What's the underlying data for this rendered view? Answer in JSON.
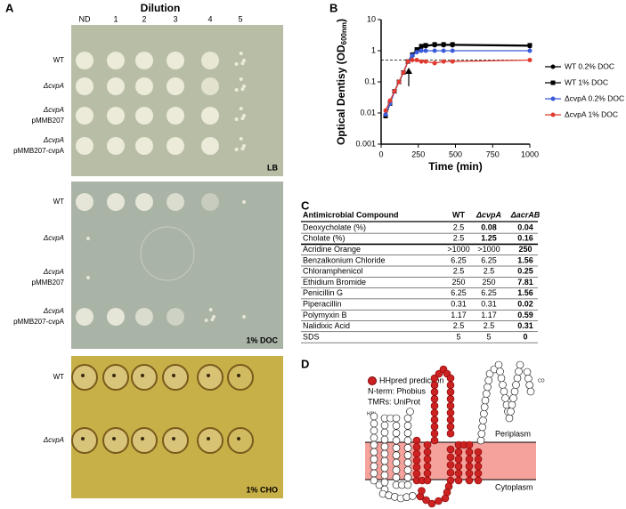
{
  "panel_labels": [
    "A",
    "B",
    "C",
    "D"
  ],
  "panel_a": {
    "title": "Dilution",
    "columns": [
      "ND",
      "1",
      "2",
      "3",
      "4",
      "5"
    ],
    "plates": [
      {
        "medium": "LB",
        "rows": [
          [
            "WT"
          ],
          [
            "ΔcvpA"
          ],
          [
            "ΔcvpA",
            "pMMB207"
          ],
          [
            "ΔcvpA",
            "pMMB207-cvpA"
          ]
        ]
      },
      {
        "medium": "1% DOC",
        "rows": [
          [
            "WT"
          ],
          [
            "ΔcvpA"
          ],
          [
            "ΔcvpA",
            "pMMB207"
          ],
          [
            "ΔcvpA",
            "pMMB207-cvpA"
          ]
        ]
      },
      {
        "medium": "1% CHO",
        "rows": [
          [
            "WT"
          ],
          [
            "ΔcvpA"
          ]
        ]
      }
    ]
  },
  "chart_data": {
    "type": "line",
    "ylabel": "Optical Dentisy (OD",
    "ylabel_sub": "600nm",
    "ylabel_end": ")",
    "xlabel": "Time (min)",
    "x": [
      30,
      60,
      90,
      120,
      150,
      180,
      210,
      240,
      270,
      300,
      360,
      420,
      480,
      1000
    ],
    "xlim": [
      0,
      1000
    ],
    "xticks": [
      0,
      250,
      500,
      750,
      1000
    ],
    "ylim": [
      0.001,
      10
    ],
    "yticks": [
      0.001,
      0.01,
      0.1,
      1,
      10
    ],
    "log_y": true,
    "reference_line": 0.5,
    "series": [
      {
        "name": "WT 0.2% DOC",
        "color": "#000000",
        "marker": "circle",
        "values": [
          0.008,
          0.02,
          0.05,
          0.1,
          0.2,
          0.45,
          0.7,
          1.0,
          1.3,
          1.4,
          1.5,
          1.5,
          1.5,
          1.4
        ]
      },
      {
        "name": "WT 1% DOC",
        "color": "#000000",
        "marker": "square",
        "values": [
          0.008,
          0.02,
          0.05,
          0.1,
          0.2,
          0.45,
          0.75,
          1.1,
          1.4,
          1.5,
          1.6,
          1.6,
          1.6,
          1.5
        ]
      },
      {
        "name": "ΔcvpA 0.2% DOC",
        "color": "#3b5bdb",
        "marker": "circle",
        "values": [
          0.009,
          0.02,
          0.05,
          0.1,
          0.2,
          0.45,
          0.7,
          0.9,
          1.0,
          1.0,
          1.0,
          1.0,
          1.0,
          1.0
        ]
      },
      {
        "name": "ΔcvpA 1% DOC",
        "color": "#e03a2f",
        "marker": "circle",
        "values": [
          0.012,
          0.025,
          0.05,
          0.1,
          0.2,
          0.45,
          0.5,
          0.5,
          0.45,
          0.45,
          0.4,
          0.45,
          0.45,
          0.5
        ]
      }
    ]
  },
  "table": {
    "header": [
      "Antimicrobial Compound",
      "WT",
      "ΔcvpA",
      "ΔacrAB"
    ],
    "rows": [
      [
        "Deoxycholate (%)",
        "2.5",
        "0.08",
        "0.04"
      ],
      [
        "Cholate (%)",
        "2.5",
        "1.25",
        "0.16"
      ],
      [
        "Acridine Orange",
        ">1000",
        ">1000",
        "250"
      ],
      [
        "Benzalkonium Chloride",
        "6.25",
        "6.25",
        "1.56"
      ],
      [
        "Chloramphenicol",
        "2.5",
        "2.5",
        "0.25"
      ],
      [
        "Ethidium Bromide",
        "250",
        "250",
        "7.81"
      ],
      [
        "Penicillin G",
        "6.25",
        "6.25",
        "1.56"
      ],
      [
        "Piperacillin",
        "0.31",
        "0.31",
        "0.02"
      ],
      [
        "Polymyxin B",
        "1.17",
        "1.17",
        "0.59"
      ],
      [
        "Nalidixic Acid",
        "2.5",
        "2.5",
        "0.31"
      ],
      [
        "SDS",
        "5",
        "5",
        "0"
      ]
    ]
  },
  "panel_d": {
    "legend": "HHpred prediction",
    "notes": [
      "N-term: Phobius",
      "TMRs: UniProt"
    ],
    "periplasm": "Periplasm",
    "cytoplasm": "Cytoplasm",
    "n_term": "H2N",
    "c_term": "CO"
  }
}
